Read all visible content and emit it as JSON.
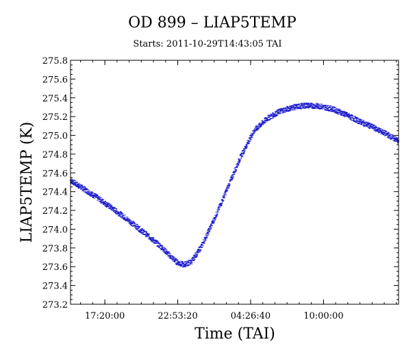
{
  "chart_data": {
    "type": "scatter",
    "title": "OD 899 – LIAP5TEMP",
    "subtitle": "Starts: 2011-10-29T14:43:05 TAI",
    "xlabel": "Time (TAI)",
    "ylabel": "LIAP5TEMP (K)",
    "x_unit": "hours since start",
    "xlim": [
      0,
      25
    ],
    "ylim": [
      273.2,
      275.8
    ],
    "y_ticks": [
      "273.2",
      "273.4",
      "273.6",
      "273.8",
      "274.0",
      "274.2",
      "274.4",
      "274.6",
      "274.8",
      "275.0",
      "275.2",
      "275.4",
      "275.6",
      "275.8"
    ],
    "y_tick_values": [
      273.2,
      273.4,
      273.6,
      273.8,
      274.0,
      274.2,
      274.4,
      274.6,
      274.8,
      275.0,
      275.2,
      275.4,
      275.6,
      275.8
    ],
    "x_ticks": [
      "17:20:00",
      "22:53:20",
      "04:26:40",
      "10:00:00"
    ],
    "x_tick_values": [
      2.615,
      8.17,
      13.725,
      19.28
    ],
    "grid": false,
    "series": [
      {
        "color": "#1a1acc",
        "band_width": 0.06,
        "x": [
          0,
          1,
          2,
          3,
          4,
          5,
          6,
          7,
          7.7,
          8.1,
          8.6,
          9.2,
          10,
          11,
          12,
          13,
          14,
          15,
          16,
          17,
          18,
          19,
          20,
          21,
          22,
          23,
          24,
          25
        ],
        "y": [
          274.52,
          274.43,
          274.34,
          274.24,
          274.14,
          274.03,
          273.92,
          273.8,
          273.7,
          273.65,
          273.62,
          273.65,
          273.82,
          274.12,
          274.45,
          274.78,
          275.05,
          275.18,
          275.26,
          275.3,
          275.32,
          275.31,
          275.28,
          275.22,
          275.15,
          275.09,
          275.02,
          274.94
        ]
      }
    ]
  }
}
